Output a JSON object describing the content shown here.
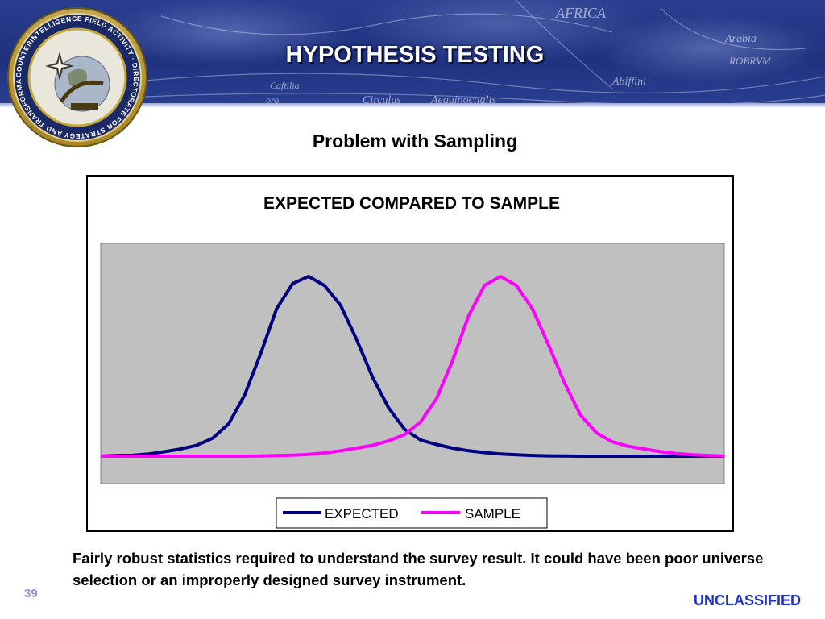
{
  "slide": {
    "title": "HYPOTHESIS TESTING",
    "subtitle": "Problem with Sampling",
    "note": "Fairly robust statistics required to understand the survey result.  It could have been poor universe selection or an improperly designed survey instrument.",
    "page_number": "39",
    "classification": "UNCLASSIFIED"
  },
  "seal": {
    "ring_text": "COUNTERINTELLIGENCE FIELD ACTIVITY · DIRECTORATE FOR STRATEGY AND TRANSFORMATION"
  },
  "banner": {
    "map_words": [
      "AFRICA",
      "Arabia",
      "ROBRVM",
      "Abiffini",
      "Caftilia",
      "Circulus",
      "Aequinoctialis",
      "oro"
    ]
  },
  "chart_data": {
    "type": "line",
    "title": "EXPECTED COMPARED TO SAMPLE",
    "xlabel": "",
    "ylabel": "",
    "x": [
      0,
      1,
      2,
      3,
      4,
      5,
      6,
      7,
      8,
      9,
      10,
      11,
      12,
      13,
      14,
      15,
      16,
      17,
      18,
      19,
      20,
      21,
      22,
      23,
      24,
      25,
      26,
      27,
      28,
      29,
      30,
      31,
      32,
      33,
      34,
      35,
      36,
      37,
      38,
      39
    ],
    "xlim": [
      0,
      39
    ],
    "ylim": [
      0,
      1.34
    ],
    "series": [
      {
        "name": "EXPECTED",
        "color": "#000080",
        "values": [
          0.0,
          0.003,
          0.005,
          0.012,
          0.025,
          0.04,
          0.06,
          0.1,
          0.18,
          0.34,
          0.57,
          0.82,
          0.96,
          1.0,
          0.95,
          0.84,
          0.65,
          0.44,
          0.27,
          0.15,
          0.09,
          0.065,
          0.045,
          0.03,
          0.02,
          0.012,
          0.008,
          0.004,
          0.002,
          0.001,
          0.0,
          0.0,
          0.0,
          0.0,
          0.0,
          0.0,
          0.0,
          0.0,
          0.0,
          0.0
        ]
      },
      {
        "name": "SAMPLE",
        "color": "#ff00ff",
        "values": [
          0.0,
          0.0,
          0.0,
          0.0,
          0.0,
          0.0,
          0.0,
          0.0,
          0.0,
          0.0,
          0.001,
          0.003,
          0.006,
          0.01,
          0.018,
          0.03,
          0.045,
          0.06,
          0.085,
          0.12,
          0.19,
          0.32,
          0.53,
          0.78,
          0.95,
          1.0,
          0.95,
          0.82,
          0.62,
          0.41,
          0.23,
          0.13,
          0.08,
          0.055,
          0.04,
          0.025,
          0.015,
          0.008,
          0.004,
          0.001
        ]
      }
    ],
    "grid": false,
    "legend_position": "bottom",
    "plot_background": "#c0c0c0"
  }
}
